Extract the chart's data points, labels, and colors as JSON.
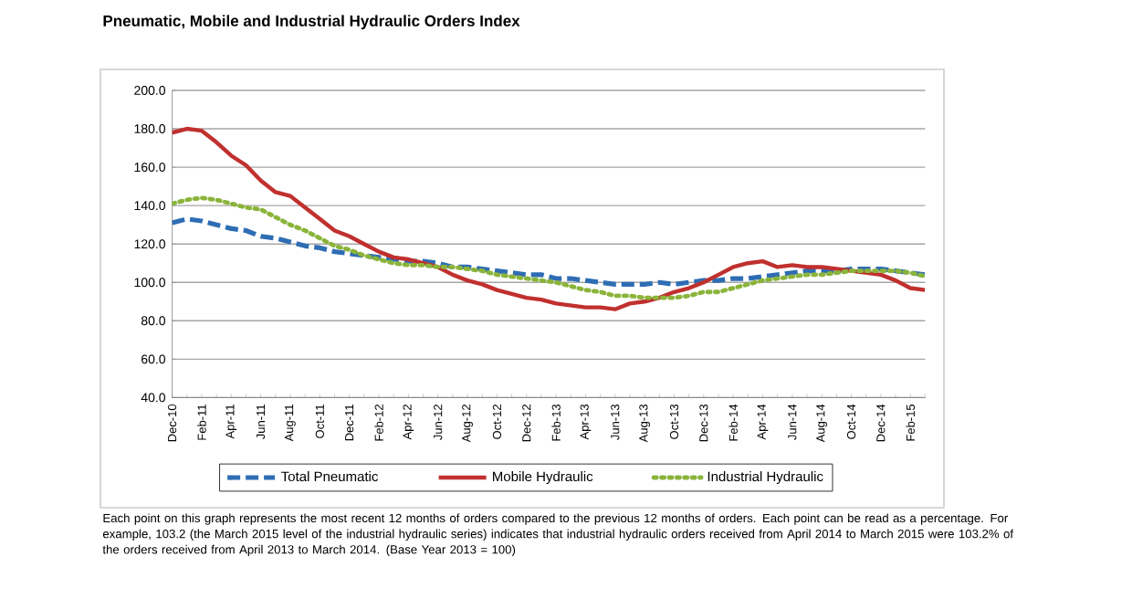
{
  "chart_data": {
    "type": "line",
    "title": "Pneumatic, Mobile and Industrial Hydraulic Orders Index",
    "categories": [
      "Dec-10",
      null,
      "Feb-11",
      null,
      "Apr-11",
      null,
      "Jun-11",
      null,
      "Aug-11",
      null,
      "Oct-11",
      null,
      "Dec-11",
      null,
      "Feb-12",
      null,
      "Apr-12",
      null,
      "Jun-12",
      null,
      "Aug-12",
      null,
      "Oct-12",
      null,
      "Dec-12",
      null,
      "Feb-13",
      null,
      "Apr-13",
      null,
      "Jun-13",
      null,
      "Aug-13",
      null,
      "Oct-13",
      null,
      "Dec-13",
      null,
      "Feb-14",
      null,
      "Apr-14",
      null,
      "Jun-14",
      null,
      "Aug-14",
      null,
      "Oct-14",
      null,
      "Dec-14",
      null,
      "Feb-15",
      null
    ],
    "series": [
      {
        "name": "Total Pneumatic",
        "color": "#2e6db4",
        "line_style": "dashed",
        "values": [
          131,
          133,
          132,
          130,
          128,
          127,
          124,
          123,
          121,
          119,
          118,
          116,
          115,
          114,
          113,
          112,
          111,
          111,
          110,
          108,
          108,
          107,
          106,
          105,
          104,
          104,
          102,
          102,
          101,
          100,
          99,
          99,
          99,
          100,
          99,
          100,
          101,
          101,
          102,
          102,
          103,
          104,
          105,
          106,
          106,
          106,
          107,
          107,
          107,
          106,
          105,
          104
        ]
      },
      {
        "name": "Mobile Hydraulic",
        "color": "#c0302e",
        "line_style": "solid",
        "values": [
          178,
          180,
          179,
          173,
          166,
          161,
          153,
          147,
          145,
          139,
          133,
          127,
          124,
          120,
          116,
          113,
          112,
          110,
          108,
          104,
          101,
          99,
          96,
          94,
          92,
          91,
          89,
          88,
          87,
          87,
          86,
          89,
          90,
          92,
          95,
          97,
          100,
          104,
          108,
          110,
          111,
          108,
          109,
          108,
          108,
          107,
          106,
          105,
          104,
          101,
          97,
          96
        ]
      },
      {
        "name": "Industrial Hydraulic",
        "color": "#8ab43a",
        "line_style": "dotted",
        "values": [
          141,
          143,
          144,
          143,
          141,
          139,
          138,
          134,
          130,
          127,
          123,
          119,
          117,
          114,
          112,
          110,
          109,
          109,
          108,
          108,
          107,
          106,
          104,
          103,
          102,
          101,
          100,
          98,
          96,
          95,
          93,
          93,
          92,
          92,
          92,
          93,
          95,
          95,
          97,
          99,
          101,
          102,
          103,
          104,
          104,
          105,
          106,
          106,
          106,
          106,
          105,
          103.2
        ]
      }
    ],
    "ylim": [
      40,
      200
    ],
    "yticks": [
      {
        "value": 40,
        "label": "40.0"
      },
      {
        "value": 60,
        "label": "60.0"
      },
      {
        "value": 80,
        "label": "80.0"
      },
      {
        "value": 100,
        "label": "100.0"
      },
      {
        "value": 120,
        "label": "120.0"
      },
      {
        "value": 140,
        "label": "140.0"
      },
      {
        "value": 160,
        "label": "160.0"
      },
      {
        "value": 180,
        "label": "180.0"
      },
      {
        "value": 200,
        "label": "200.0"
      }
    ],
    "grid": "y",
    "legend": "bottom",
    "marker": "none",
    "annotations": [
      "Each point on this graph represents the most recent 12 months of orders compared to the previous 12 months of orders.  Each point can be read as a percentage.  For example, 103.2 (the March 2015 level of the industrial hydraulic series) indicates that industrial hydraulic orders received from April 2014 to March 2015 were 103.2% of the orders received from April 2013 to March 2014.  (Base Year 2013 = 100)"
    ]
  }
}
